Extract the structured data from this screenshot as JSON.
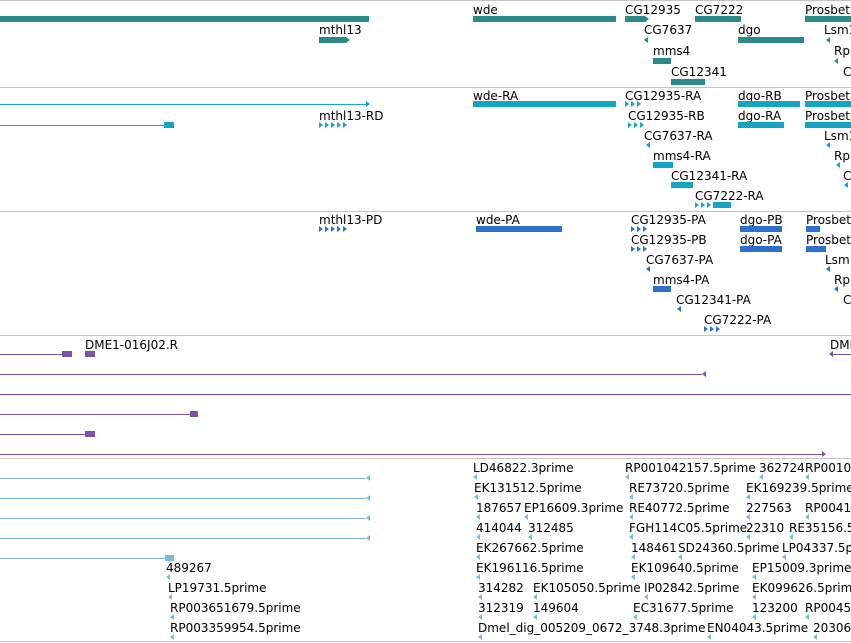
{
  "palette": {
    "gene": "#2b8a88",
    "transcript": "#14a5c1",
    "protein": "#2f6fce",
    "clone": "#7a53a8",
    "est": "#7fb9e0",
    "divider": "#c4c4c4"
  },
  "tracks": {
    "genes": {
      "labels": [
        "mthl13",
        "wde",
        "CG12935",
        "CG7222",
        "Prosbeta",
        "CG7637",
        "dgo",
        "Lsm1",
        "mms4",
        "Rp",
        "CG12341",
        "C"
      ]
    },
    "transcripts": {
      "labels": [
        "wde-RA",
        "CG12935-RA",
        "dgo-RB",
        "Prosbeta",
        "mthl13-RD",
        "CG12935-RB",
        "dgo-RA",
        "Prosbeta",
        "CG7637-RA",
        "Lsm1",
        "mms4-RA",
        "Rp",
        "CG12341-RA",
        "C",
        "CG7222-RA"
      ]
    },
    "proteins": {
      "labels": [
        "mthl13-PD",
        "wde-PA",
        "CG12935-PA",
        "dgo-PB",
        "Prosbet",
        "CG12935-PB",
        "dgo-PA",
        "Prosbet",
        "CG7637-PA",
        "Lsm1",
        "mms4-PA",
        "Rp",
        "CG12341-PA",
        "C",
        "CG7222-PA"
      ]
    },
    "clones": {
      "labels": [
        "DME1-016J02.R",
        "DME"
      ]
    },
    "ests": {
      "labels": [
        "LD46822.3prime",
        "RP001042157.5prime",
        "362724",
        "RP0010",
        "EK131512.5prime",
        "RE73720.5prime",
        "EK169239.5prime",
        "187657",
        "EP16609.3prime",
        "RE40772.5prime",
        "227563",
        "RP00412",
        "414044",
        "312485",
        "FGH114C05.5prime",
        "22310",
        "RE35156.5",
        "EK267662.5prime",
        "148461",
        "SD24360.5prime",
        "LP04337.5p",
        "489267",
        "EK196116.5prime",
        "EK109640.5prime",
        "EP15009.3prime",
        "LP19731.5prime",
        "314282",
        "EK105050.5prime",
        "IP02842.5prime",
        "EK099626.5prim",
        "RP003651679.5prime",
        "312319",
        "149604",
        "EC31677.5prime",
        "123200",
        "RP00451",
        "RP003359954.5prime",
        "Dmel_dig_005209_0672_3748.3prime",
        "EN04043.5prime",
        "20306"
      ]
    }
  }
}
